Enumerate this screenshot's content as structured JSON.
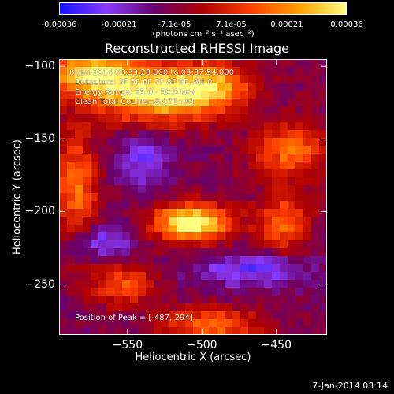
{
  "colorbar": {
    "tick_labels": [
      "-0.00036",
      "-0.00021",
      "-7.1e-05",
      "7.1e-05",
      "0.00021",
      "0.00036"
    ],
    "units": "(photons cm⁻² s⁻¹ asec⁻²)",
    "colors": [
      "#1010ff",
      "#8a3cff",
      "#6a006a",
      "#b00000",
      "#ff4000",
      "#ffa000",
      "#ffff80"
    ]
  },
  "annotations": {
    "time": "8-Jan-2014 03:33:28.000 to 03:37:54.000",
    "detectors": "Detectors: 3F 5F 6F 7F 8F 9F, Att 0",
    "energy": "Energy Range: 25.0 - 50.0 keV",
    "clean": "Clean    Total Counts=8.97E+03",
    "peak": "Position of Peak = [-487,-294]"
  },
  "footer": "7-Jan-2014 03:14",
  "chart_data": {
    "type": "heatmap",
    "title": "Reconstructed RHESSI Image",
    "xlabel": "Heliocentric X (arcsec)",
    "ylabel": "Heliocentric Y (arcsec)",
    "xlim": [
      -596,
      -416
    ],
    "ylim": [
      -285,
      -95
    ],
    "x_ticks": [
      -550,
      -500,
      -450
    ],
    "y_ticks": [
      -100,
      -150,
      -200,
      -250
    ],
    "colorbar_range": [
      -0.00036,
      0.00036
    ],
    "colorbar_ticks": [
      -0.00036,
      -0.00021,
      -7.1e-05,
      7.1e-05,
      0.00021,
      0.00036
    ],
    "peak_position": [
      -487,
      -294
    ]
  }
}
